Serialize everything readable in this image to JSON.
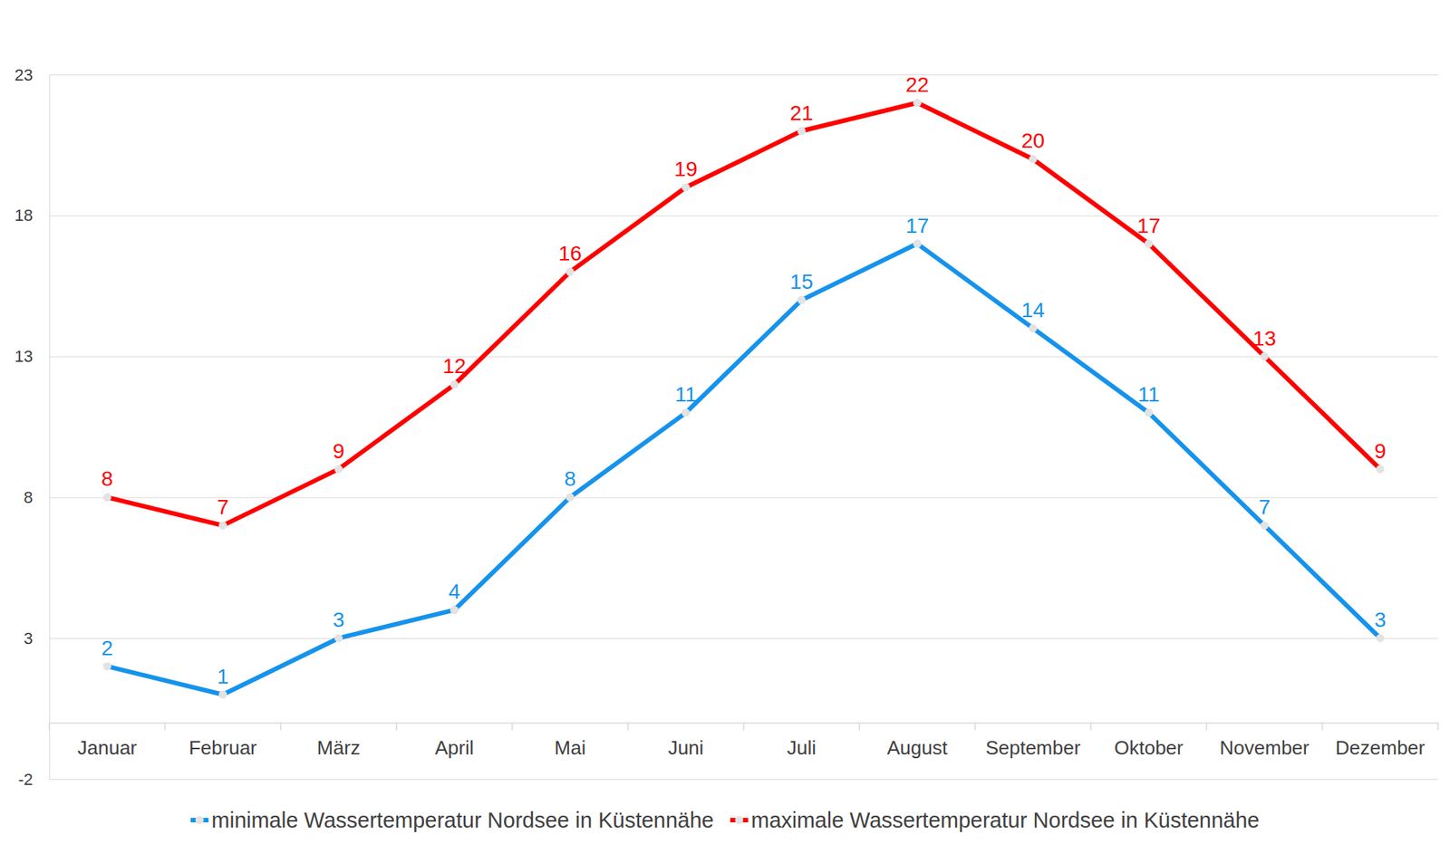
{
  "chart_data": {
    "type": "line",
    "categories": [
      "Januar",
      "Februar",
      "März",
      "April",
      "Mai",
      "Juni",
      "Juli",
      "August",
      "September",
      "Oktober",
      "November",
      "Dezember"
    ],
    "series": [
      {
        "name": "minimale Wassertemperatur Nordsee in Küstennähe",
        "color": "#1593ec",
        "marker": "circle",
        "values": [
          2,
          1,
          3,
          4,
          8,
          11,
          15,
          17,
          14,
          11,
          7,
          3
        ]
      },
      {
        "name": "maximale Wassertemperatur Nordsee in Küstennähe",
        "color": "#ff0000",
        "marker": "circle",
        "values": [
          8,
          7,
          9,
          12,
          16,
          19,
          21,
          22,
          20,
          17,
          13,
          9
        ]
      }
    ],
    "ylim": [
      -2,
      23
    ],
    "yticks": [
      -2,
      3,
      8,
      13,
      18,
      23
    ],
    "grid": true,
    "data_labels": true,
    "legend": "bottom"
  }
}
